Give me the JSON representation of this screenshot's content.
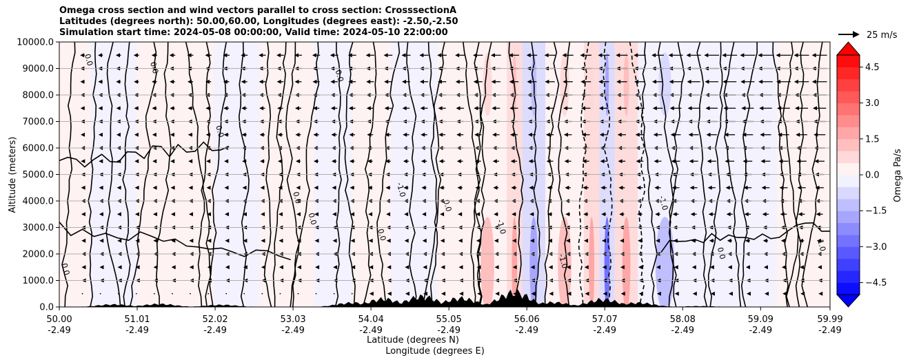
{
  "chart_data": {
    "type": "heatmap",
    "title_lines": [
      "Omega cross section and wind vectors parallel to cross section: CrosssectionA",
      "Latitudes (degrees north): 50.00,60.00, Longitudes (degrees east): -2.50,-2.50",
      "Simulation start time: 2024-05-08 00:00:00, Valid time: 2024-05-10 22:00:00"
    ],
    "ylabel": "Altitude (meters)",
    "xlabel_lat": "Latitude (degrees N)",
    "xlabel_lon": "Longitude (degrees E)",
    "ylim": [
      0,
      10000
    ],
    "y_ticks": [
      "0.0",
      "1000.0",
      "2000.0",
      "3000.0",
      "4000.0",
      "5000.0",
      "6000.0",
      "7000.0",
      "8000.0",
      "9000.0",
      "10000.0"
    ],
    "y_tick_values": [
      0,
      1000,
      2000,
      3000,
      4000,
      5000,
      6000,
      7000,
      8000,
      9000,
      10000
    ],
    "xlim": [
      50.0,
      59.99
    ],
    "x_tick_values": [
      50.0,
      51.01,
      52.02,
      53.03,
      54.04,
      55.05,
      56.06,
      57.07,
      58.08,
      59.09,
      59.99
    ],
    "x_tick_lat": [
      "50.00",
      "51.01",
      "52.02",
      "53.03",
      "54.04",
      "55.05",
      "56.06",
      "57.07",
      "58.08",
      "59.09",
      "59.99"
    ],
    "x_tick_lon": [
      "-2.49",
      "-2.49",
      "-2.49",
      "-2.49",
      "-2.49",
      "-2.49",
      "-2.49",
      "-2.49",
      "-2.49",
      "-2.49",
      "-2.49"
    ],
    "colorbar": {
      "label": "Omega Pa/s",
      "range": [
        -5,
        5
      ],
      "tick_values": [
        -4.5,
        -3.0,
        -1.5,
        0.0,
        1.5,
        3.0,
        4.5
      ],
      "tick_labels": [
        "−4.5",
        "−3.0",
        "−1.5",
        "0.0",
        "1.5",
        "3.0",
        "4.5"
      ],
      "levels": 20,
      "extend": "both",
      "cmap": "bwr"
    },
    "contour_labels": [
      "0.0",
      "0.0",
      "0.0",
      "0.0",
      "0.0",
      "0.0",
      "0.0",
      "-1.0",
      "-1.0",
      "1.0",
      "0.0",
      "-1.0",
      "-1.0",
      "0.0",
      "0.0"
    ],
    "quiver_key_label": "25 m/s",
    "terrain_peaks": [
      {
        "lat": 50.7,
        "height": 120
      },
      {
        "lat": 51.3,
        "height": 140
      },
      {
        "lat": 52.1,
        "height": 100
      },
      {
        "lat": 53.8,
        "height": 200
      },
      {
        "lat": 54.2,
        "height": 380
      },
      {
        "lat": 54.7,
        "height": 500
      },
      {
        "lat": 55.2,
        "height": 420
      },
      {
        "lat": 55.9,
        "height": 700
      },
      {
        "lat": 56.4,
        "height": 220
      },
      {
        "lat": 57.05,
        "height": 360
      },
      {
        "lat": 57.5,
        "height": 200
      },
      {
        "lat": 58.3,
        "height": 40
      }
    ],
    "omega_bands": [
      {
        "lat": 50.4,
        "value": -0.3
      },
      {
        "lat": 51.0,
        "value": 0.2
      },
      {
        "lat": 52.0,
        "value": -0.2
      },
      {
        "lat": 52.6,
        "value": 0.3
      },
      {
        "lat": 53.3,
        "value": -0.2
      },
      {
        "lat": 53.8,
        "value": 0.4
      },
      {
        "lat": 54.3,
        "value": -0.6
      },
      {
        "lat": 54.9,
        "value": 0.6
      },
      {
        "lat": 55.3,
        "value": 1.2
      },
      {
        "lat": 55.8,
        "value": 1.8
      },
      {
        "lat": 56.0,
        "value": -2.0
      },
      {
        "lat": 56.3,
        "value": 1.4
      },
      {
        "lat": 56.8,
        "value": 1.6
      },
      {
        "lat": 57.0,
        "value": -2.6
      },
      {
        "lat": 57.2,
        "value": 1.8
      },
      {
        "lat": 57.5,
        "value": -1.2
      },
      {
        "lat": 58.2,
        "value": -0.5
      },
      {
        "lat": 58.8,
        "value": -0.8
      },
      {
        "lat": 59.3,
        "value": 0.5
      },
      {
        "lat": 59.8,
        "value": 0.8
      }
    ],
    "wind_vector_samples": [
      {
        "lat": 51.5,
        "alt": 9000,
        "u": -6
      },
      {
        "lat": 53.5,
        "alt": 9000,
        "u": -14
      },
      {
        "lat": 55.5,
        "alt": 9000,
        "u": -18
      },
      {
        "lat": 57.5,
        "alt": 9000,
        "u": -22
      },
      {
        "lat": 59.5,
        "alt": 9000,
        "u": -18
      },
      {
        "lat": 58.5,
        "alt": 5000,
        "u": -22
      },
      {
        "lat": 56.0,
        "alt": 5000,
        "u": -12
      },
      {
        "lat": 52.0,
        "alt": 5000,
        "u": -3
      },
      {
        "lat": 55.0,
        "alt": 1000,
        "u": -10
      }
    ]
  }
}
